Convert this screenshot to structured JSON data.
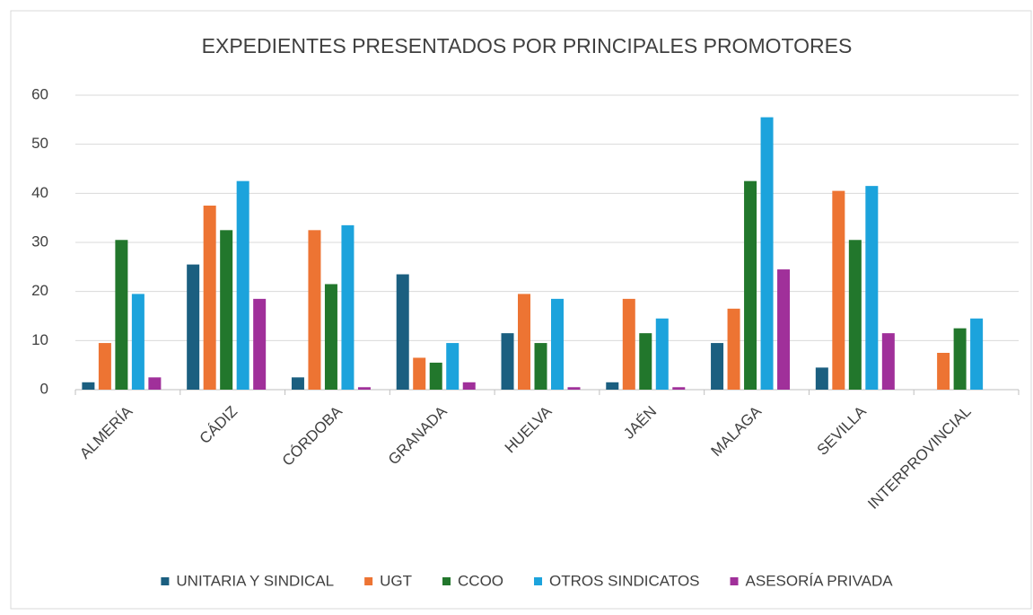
{
  "chart_data": {
    "type": "bar",
    "title": "EXPEDIENTES PRESENTADOS POR PRINCIPALES PROMOTORES",
    "categories": [
      "ALMERÍA",
      "CÁDIZ",
      "CÓRDOBA",
      "GRANADA",
      "HUELVA",
      "JAÉN",
      "MALAGA",
      "SEVILLA",
      "INTERPROVINCIAL"
    ],
    "series": [
      {
        "name": "UNITARIA Y SINDICAL",
        "color": "#1b5f80",
        "values": [
          1.5,
          25.5,
          2.5,
          23.5,
          11.5,
          1.5,
          9.5,
          4.5,
          null
        ]
      },
      {
        "name": "UGT",
        "color": "#ed7433",
        "values": [
          9.5,
          37.5,
          32.5,
          6.5,
          19.5,
          18.5,
          16.5,
          40.5,
          7.5
        ]
      },
      {
        "name": "CCOO",
        "color": "#22772c",
        "values": [
          30.5,
          32.5,
          21.5,
          5.5,
          9.5,
          11.5,
          42.5,
          30.5,
          12.5
        ]
      },
      {
        "name": "OTROS SINDICATOS",
        "color": "#1ca3dc",
        "values": [
          19.5,
          42.5,
          33.5,
          9.5,
          18.5,
          14.5,
          55.5,
          41.5,
          14.5
        ]
      },
      {
        "name": "ASESORÍA PRIVADA",
        "color": "#a0309a",
        "values": [
          2.5,
          18.5,
          0.5,
          1.5,
          0.5,
          0.5,
          24.5,
          11.5,
          null
        ]
      }
    ],
    "ylim": [
      0,
      60
    ],
    "yticks": [
      0,
      10,
      20,
      30,
      40,
      50,
      60
    ],
    "grid": true,
    "legend": "bottom"
  }
}
